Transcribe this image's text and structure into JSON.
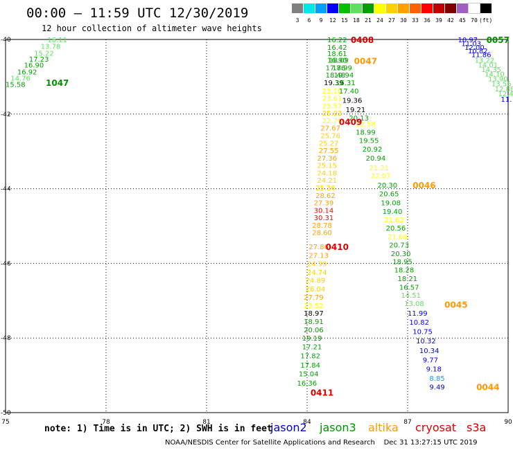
{
  "title": "00:00 – 11:59 UTC 12/30/2019",
  "subtitle": "12 hour collection of altimeter wave heights",
  "legend": {
    "colors": [
      "#808080",
      "#00e5e5",
      "#00a0ff",
      "#0000ff",
      "#00c000",
      "#60e060",
      "#00a000",
      "#ffff00",
      "#ffd000",
      "#ffa000",
      "#ff6000",
      "#ff0000",
      "#c00000",
      "#800000",
      "#a060c0",
      "#ffffff",
      "#000000"
    ],
    "labels": [
      "3",
      "6",
      "9",
      "12",
      "15",
      "18",
      "21",
      "24",
      "27",
      "30",
      "33",
      "36",
      "39",
      "42",
      "45",
      "70",
      "(ft)"
    ]
  },
  "axes": {
    "x_ticks": [
      "75",
      "78",
      "81",
      "84",
      "87",
      "90"
    ],
    "y_ticks": [
      "-40",
      "-42",
      "-44",
      "-46",
      "-48",
      "-50"
    ],
    "lon_range": [
      75,
      90
    ],
    "lat_range": [
      -50,
      -40
    ]
  },
  "satellite_colors": {
    "jason2": "#0000cc",
    "jason3": "#009000",
    "altika": "#ff9900",
    "cryosat": "#dd0000",
    "s3a": "#cc0000"
  },
  "tracks": [
    {
      "id": "1047",
      "time": "1047",
      "color": "#009000",
      "time_lon": 76.2,
      "time_lat": -41.15,
      "values": [
        {
          "lon": 76.25,
          "lat": -40.0,
          "v": "16.11",
          "c": "#60e060"
        },
        {
          "lon": 76.05,
          "lat": -40.18,
          "v": "13.78",
          "c": "#60e060"
        },
        {
          "lon": 75.85,
          "lat": -40.36,
          "v": "15.22",
          "c": "#60e060"
        },
        {
          "lon": 75.7,
          "lat": -40.52,
          "v": "17.23",
          "c": "#00a000"
        },
        {
          "lon": 75.55,
          "lat": -40.68,
          "v": "16.90",
          "c": "#00a000"
        },
        {
          "lon": 75.35,
          "lat": -40.86,
          "v": "16.92",
          "c": "#00a000"
        },
        {
          "lon": 75.15,
          "lat": -41.03,
          "v": "14.76",
          "c": "#60e060"
        },
        {
          "lon": 75.0,
          "lat": -41.2,
          "v": "15.58",
          "c": "#00a000"
        }
      ]
    },
    {
      "id": "0408",
      "time": "0408",
      "color": "#dd0000",
      "time_lon": 85.3,
      "time_lat": -40.0,
      "values": [
        {
          "lon": 84.6,
          "lat": -40.0,
          "v": "16.22",
          "c": "#00a000"
        },
        {
          "lon": 84.6,
          "lat": -40.2,
          "v": "16.42",
          "c": "#00a000"
        },
        {
          "lon": 84.6,
          "lat": -40.37,
          "v": "18.61",
          "c": "#00a000"
        },
        {
          "lon": 84.6,
          "lat": -40.55,
          "v": "16.90",
          "c": "#00a000"
        },
        {
          "lon": 84.55,
          "lat": -40.75,
          "v": "17.76",
          "c": "#00a000"
        },
        {
          "lon": 84.55,
          "lat": -40.95,
          "v": "18.48",
          "c": "#00a000"
        },
        {
          "lon": 84.5,
          "lat": -41.15,
          "v": "19.39",
          "c": "#000000"
        },
        {
          "lon": 84.45,
          "lat": -41.37,
          "v": "23.10",
          "c": "#ffff00"
        },
        {
          "lon": 84.45,
          "lat": -41.57,
          "v": "23.61",
          "c": "#ffff00"
        },
        {
          "lon": 84.45,
          "lat": -41.77,
          "v": "23.57",
          "c": "#ffff00"
        },
        {
          "lon": 84.45,
          "lat": -41.97,
          "v": "25.93",
          "c": "#ffd000"
        },
        {
          "lon": 84.45,
          "lat": -42.17,
          "v": "22.79",
          "c": "#ffff00"
        },
        {
          "lon": 84.4,
          "lat": -42.37,
          "v": "27.67",
          "c": "#ffa000"
        },
        {
          "lon": 84.4,
          "lat": -42.57,
          "v": "25.76",
          "c": "#ffd000"
        },
        {
          "lon": 84.35,
          "lat": -42.77,
          "v": "25.27",
          "c": "#ffd000"
        },
        {
          "lon": 84.35,
          "lat": -42.97,
          "v": "27.55",
          "c": "#ffa000"
        },
        {
          "lon": 84.3,
          "lat": -43.17,
          "v": "27.36",
          "c": "#ffa000"
        },
        {
          "lon": 84.3,
          "lat": -43.37,
          "v": "25.15",
          "c": "#ffd000"
        },
        {
          "lon": 84.3,
          "lat": -43.57,
          "v": "24.18",
          "c": "#ffd000"
        },
        {
          "lon": 84.3,
          "lat": -43.77,
          "v": "24.21",
          "c": "#ffd000"
        },
        {
          "lon": 84.25,
          "lat": -43.97,
          "v": "25.36",
          "c": "#ffd000"
        },
        {
          "lon": 84.25,
          "lat": -44.17,
          "v": "28.62",
          "c": "#ffa000"
        },
        {
          "lon": 84.2,
          "lat": -44.37,
          "v": "27.39",
          "c": "#ffa000"
        },
        {
          "lon": 84.2,
          "lat": -44.57,
          "v": "30.14",
          "c": "#ff0000"
        },
        {
          "lon": 84.2,
          "lat": -44.77,
          "v": "30.31",
          "c": "#ff0000"
        },
        {
          "lon": 84.15,
          "lat": -44.97,
          "v": "28.78",
          "c": "#ffa000"
        },
        {
          "lon": 84.15,
          "lat": -45.17,
          "v": "28.60",
          "c": "#ffa000"
        }
      ]
    },
    {
      "id": "0047",
      "time": "0047",
      "color": "#ff9900",
      "time_lon": 85.4,
      "time_lat": -40.57,
      "values": [
        {
          "lon": 84.65,
          "lat": -40.55,
          "v": "18.09",
          "c": "#00a000"
        },
        {
          "lon": 84.75,
          "lat": -40.75,
          "v": "18.99",
          "c": "#00a000"
        },
        {
          "lon": 84.8,
          "lat": -40.95,
          "v": "19.94",
          "c": "#00a000"
        },
        {
          "lon": 84.85,
          "lat": -41.15,
          "v": "16.31",
          "c": "#00a000"
        },
        {
          "lon": 84.95,
          "lat": -41.37,
          "v": "17.40",
          "c": "#00a000"
        },
        {
          "lon": 85.05,
          "lat": -41.62,
          "v": "19.36",
          "c": "#000000"
        },
        {
          "lon": 85.15,
          "lat": -41.87,
          "v": "19.21",
          "c": "#000000"
        },
        {
          "lon": 85.25,
          "lat": -42.1,
          "v": "20.13",
          "c": "#00a000"
        }
      ]
    },
    {
      "id": "0409",
      "time": "0409",
      "color": "#dd0000",
      "time_lon": 84.95,
      "time_lat": -42.2,
      "values": [
        {
          "lon": 85.45,
          "lat": -42.25,
          "v": "22.58",
          "c": "#ffff00"
        },
        {
          "lon": 85.45,
          "lat": -42.48,
          "v": "18.99",
          "c": "#00a000"
        },
        {
          "lon": 85.55,
          "lat": -42.7,
          "v": "19.55",
          "c": "#00a000"
        },
        {
          "lon": 85.65,
          "lat": -42.93,
          "v": "20.92",
          "c": "#00a000"
        },
        {
          "lon": 85.75,
          "lat": -43.17,
          "v": "20.94",
          "c": "#00a000"
        },
        {
          "lon": 85.85,
          "lat": -43.43,
          "v": "21.21",
          "c": "#ffff00"
        },
        {
          "lon": 85.9,
          "lat": -43.65,
          "v": "22.07",
          "c": "#ffff00"
        }
      ]
    },
    {
      "id": "0046",
      "time": "0046",
      "color": "#ff9900",
      "time_lon": 87.15,
      "time_lat": -43.9,
      "values": [
        {
          "lon": 86.1,
          "lat": -43.9,
          "v": "20.30",
          "c": "#00a000"
        },
        {
          "lon": 86.15,
          "lat": -44.13,
          "v": "20.65",
          "c": "#00a000"
        },
        {
          "lon": 86.2,
          "lat": -44.37,
          "v": "19.08",
          "c": "#00a000"
        },
        {
          "lon": 86.25,
          "lat": -44.6,
          "v": "19.40",
          "c": "#00a000"
        },
        {
          "lon": 86.3,
          "lat": -44.82,
          "v": "21.62",
          "c": "#ffff00"
        },
        {
          "lon": 86.35,
          "lat": -45.05,
          "v": "20.56",
          "c": "#00a000"
        },
        {
          "lon": 86.4,
          "lat": -45.28,
          "v": "21.69",
          "c": "#ffff00"
        },
        {
          "lon": 86.45,
          "lat": -45.5,
          "v": "20.73",
          "c": "#00a000"
        },
        {
          "lon": 86.5,
          "lat": -45.73,
          "v": "20.30",
          "c": "#00a000"
        },
        {
          "lon": 86.55,
          "lat": -45.95,
          "v": "18.95",
          "c": "#00a000"
        },
        {
          "lon": 86.6,
          "lat": -46.17,
          "v": "18.28",
          "c": "#00a000"
        },
        {
          "lon": 86.7,
          "lat": -46.4,
          "v": "18.21",
          "c": "#00a000"
        },
        {
          "lon": 86.75,
          "lat": -46.63,
          "v": "16.57",
          "c": "#00a000"
        },
        {
          "lon": 86.8,
          "lat": -46.85,
          "v": "14.51",
          "c": "#60e060"
        },
        {
          "lon": 86.9,
          "lat": -47.07,
          "v": "13.08",
          "c": "#60e060"
        }
      ]
    },
    {
      "id": "0410",
      "time": "0410",
      "color": "#dd0000",
      "time_lon": 84.55,
      "time_lat": -45.55,
      "values": [
        {
          "lon": 84.05,
          "lat": -45.55,
          "v": "27.86",
          "c": "#ffa000"
        },
        {
          "lon": 84.05,
          "lat": -45.78,
          "v": "27.13",
          "c": "#ffa000"
        },
        {
          "lon": 84.0,
          "lat": -46.0,
          "v": "24.99",
          "c": "#ffd000"
        },
        {
          "lon": 84.0,
          "lat": -46.23,
          "v": "24.74",
          "c": "#ffd000"
        },
        {
          "lon": 83.95,
          "lat": -46.45,
          "v": "24.89",
          "c": "#ffd000"
        },
        {
          "lon": 83.95,
          "lat": -46.68,
          "v": "26.04",
          "c": "#ffd000"
        },
        {
          "lon": 83.9,
          "lat": -46.9,
          "v": "27.79",
          "c": "#ffa000"
        },
        {
          "lon": 83.9,
          "lat": -47.12,
          "v": "23.52",
          "c": "#ffff00"
        }
      ]
    },
    {
      "id": "0411",
      "time": "0411",
      "color": "#dd0000",
      "time_lon": 84.1,
      "time_lat": -49.45,
      "values": [
        {
          "lon": 83.9,
          "lat": -47.33,
          "v": "18.97",
          "c": "#000000"
        },
        {
          "lon": 83.9,
          "lat": -47.55,
          "v": "18.91",
          "c": "#00a000"
        },
        {
          "lon": 83.9,
          "lat": -47.77,
          "v": "20.06",
          "c": "#00a000"
        },
        {
          "lon": 83.85,
          "lat": -48.0,
          "v": "19.19",
          "c": "#00a000"
        },
        {
          "lon": 83.85,
          "lat": -48.23,
          "v": "17.21",
          "c": "#00a000"
        },
        {
          "lon": 83.8,
          "lat": -48.47,
          "v": "17.82",
          "c": "#00a000"
        },
        {
          "lon": 83.8,
          "lat": -48.72,
          "v": "17.84",
          "c": "#00a000"
        },
        {
          "lon": 83.75,
          "lat": -48.95,
          "v": "15.04",
          "c": "#00a000"
        },
        {
          "lon": 83.7,
          "lat": -49.2,
          "v": "16.36",
          "c": "#00a000"
        }
      ]
    },
    {
      "id": "0045",
      "time": "0045",
      "color": "#ff9900",
      "time_lon": 88.1,
      "time_lat": -47.1,
      "values": [
        {
          "lon": 87.0,
          "lat": -47.33,
          "v": "11.99",
          "c": "#0000ff"
        },
        {
          "lon": 87.05,
          "lat": -47.57,
          "v": "10.82",
          "c": "#0000ff"
        },
        {
          "lon": 87.15,
          "lat": -47.82,
          "v": "10.75",
          "c": "#0000ff"
        },
        {
          "lon": 87.25,
          "lat": -48.07,
          "v": "10.32",
          "c": "#0000ff"
        },
        {
          "lon": 87.35,
          "lat": -48.33,
          "v": "10.34",
          "c": "#0000ff"
        },
        {
          "lon": 87.45,
          "lat": -48.58,
          "v": "9.77",
          "c": "#0000ff"
        },
        {
          "lon": 87.55,
          "lat": -48.82,
          "v": "9.18",
          "c": "#0000ff"
        },
        {
          "lon": 87.65,
          "lat": -49.07,
          "v": "8.85",
          "c": "#00a0ff"
        },
        {
          "lon": 87.65,
          "lat": -49.3,
          "v": "9.49",
          "c": "#0000cc"
        }
      ]
    },
    {
      "id": "0044",
      "time": "0044",
      "color": "#ff9900",
      "time_lon": 89.05,
      "time_lat": -49.3,
      "values": []
    },
    {
      "id": "0057",
      "time": "0057",
      "color": "#009000",
      "time_lon": 89.35,
      "time_lat": -40.0,
      "values": [
        {
          "lon": 88.5,
          "lat": -40.0,
          "v": "10.97",
          "c": "#0000ff"
        },
        {
          "lon": 88.6,
          "lat": -40.1,
          "v": "11.03",
          "c": "#0000ff"
        },
        {
          "lon": 88.7,
          "lat": -40.2,
          "v": "12.00",
          "c": "#0000ff"
        },
        {
          "lon": 88.8,
          "lat": -40.3,
          "v": "10.82",
          "c": "#0000ff"
        },
        {
          "lon": 88.9,
          "lat": -40.4,
          "v": "11.86",
          "c": "#0000ff"
        },
        {
          "lon": 89.0,
          "lat": -40.55,
          "v": "13.22",
          "c": "#60e060"
        },
        {
          "lon": 89.1,
          "lat": -40.68,
          "v": "14.01",
          "c": "#60e060"
        },
        {
          "lon": 89.2,
          "lat": -40.8,
          "v": "14.35",
          "c": "#60e060"
        },
        {
          "lon": 89.3,
          "lat": -40.92,
          "v": "14.10",
          "c": "#60e060"
        },
        {
          "lon": 89.4,
          "lat": -41.05,
          "v": "13.90",
          "c": "#60e060"
        },
        {
          "lon": 89.5,
          "lat": -41.18,
          "v": "13.56",
          "c": "#60e060"
        },
        {
          "lon": 89.6,
          "lat": -41.32,
          "v": "12.88",
          "c": "#60e060"
        },
        {
          "lon": 89.7,
          "lat": -41.45,
          "v": "12.40",
          "c": "#60e060"
        },
        {
          "lon": 89.78,
          "lat": -41.6,
          "v": "11.",
          "c": "#0000ff"
        }
      ]
    }
  ],
  "note": "note: 1) Time is in UTC; 2) SWH is in feet",
  "satellites": [
    "jason2",
    "jason3",
    "altika",
    "cryosat",
    "s3a"
  ],
  "footer": "NOAA/NESDIS Center for Satellite Applications and Research    Dec 31 13:27:15 UTC 2019"
}
